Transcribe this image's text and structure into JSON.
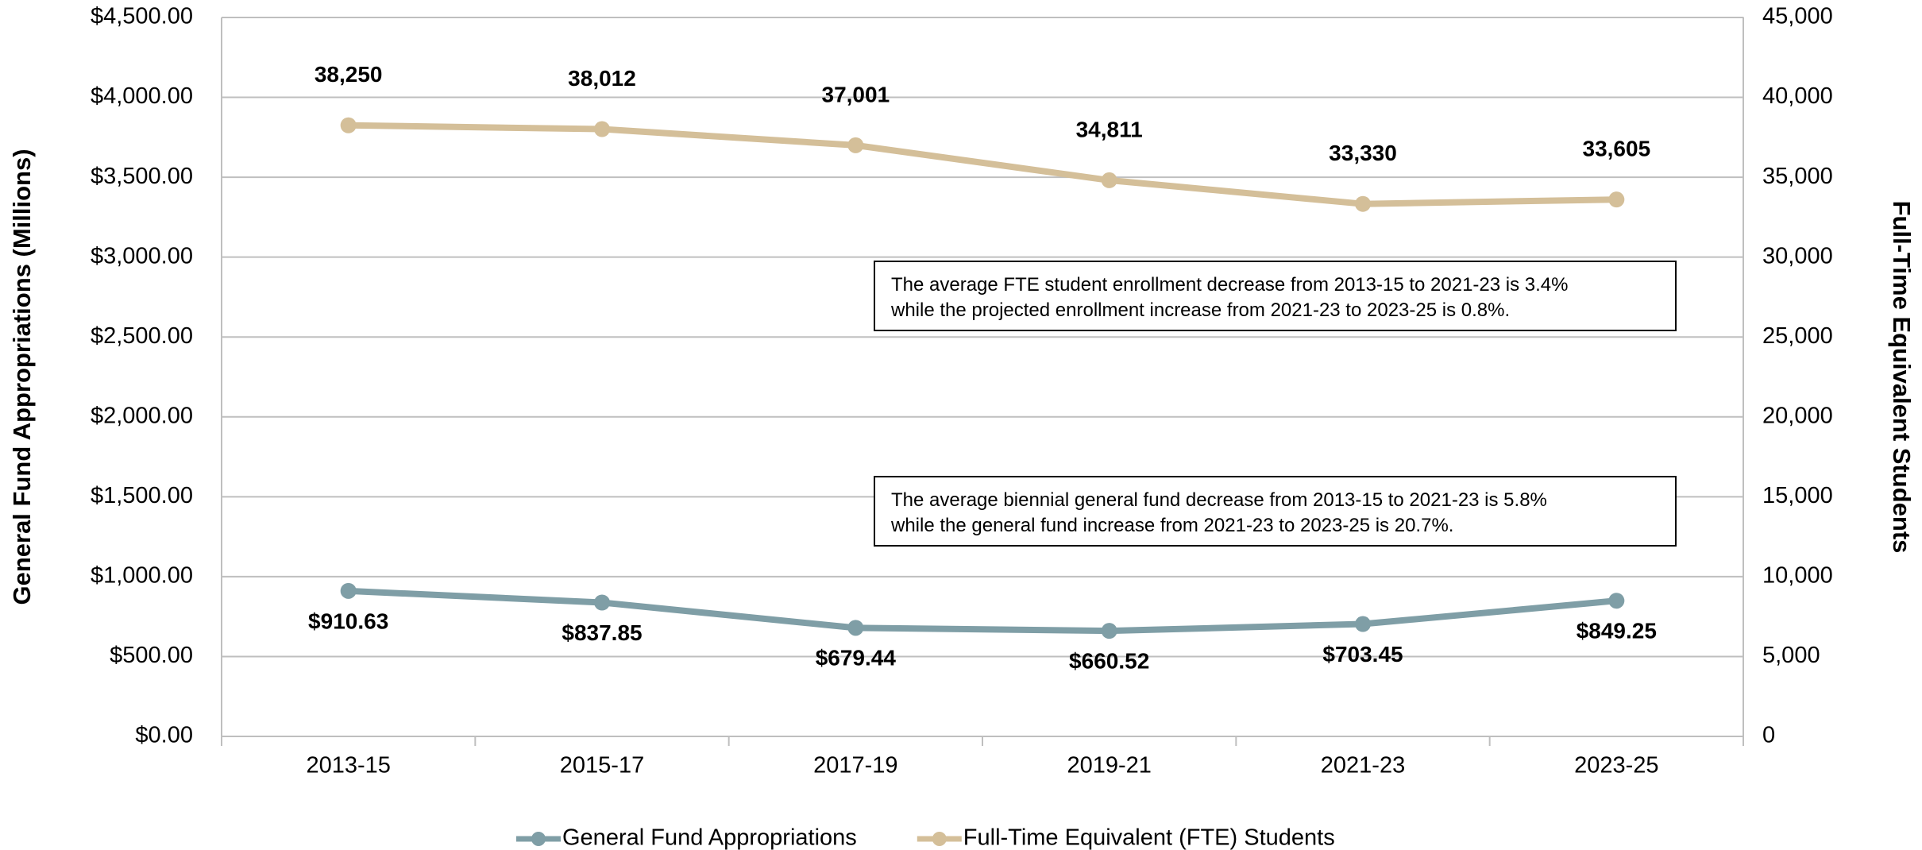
{
  "chart_data": {
    "type": "line",
    "categories": [
      "2013-15",
      "2015-17",
      "2017-19",
      "2019-21",
      "2021-23",
      "2023-25"
    ],
    "series": [
      {
        "name": "General Fund Appropriations",
        "color": "#7f9ea6",
        "label_color": "#5f7e87",
        "values": [
          910.63,
          837.85,
          679.44,
          660.52,
          703.45,
          849.25
        ],
        "value_labels": [
          "$910.63",
          "$837.85",
          "$679.44",
          "$660.52",
          "$703.45",
          "$849.25"
        ]
      },
      {
        "name": "Full-Time Equivalent (FTE) Students",
        "color": "#d4bf99",
        "label_color": "#b8955e",
        "axis": "y2",
        "values": [
          38250,
          38012,
          37001,
          34811,
          33330,
          33605
        ],
        "value_labels": [
          "38,250",
          "38,012",
          "37,001",
          "34,811",
          "33,330",
          "33,605"
        ]
      }
    ],
    "ylabel": "General Fund Appropriations (Millions)",
    "y2label": "Full-Time Equivalent Students",
    "ylim": [
      0,
      4500
    ],
    "yticks": [
      {
        "value": 0,
        "label": "$0.00"
      },
      {
        "value": 500,
        "label": "$500.00"
      },
      {
        "value": 1000,
        "label": "$1,000.00"
      },
      {
        "value": 1500,
        "label": "$1,500.00"
      },
      {
        "value": 2000,
        "label": "$2,000.00"
      },
      {
        "value": 2500,
        "label": "$2,500.00"
      },
      {
        "value": 3000,
        "label": "$3,000.00"
      },
      {
        "value": 3500,
        "label": "$3,500.00"
      },
      {
        "value": 4000,
        "label": "$4,000.00"
      },
      {
        "value": 4500,
        "label": "$4,500.00"
      }
    ],
    "y2lim": [
      0,
      45000
    ],
    "y2ticks": [
      0,
      {
        "value": 5000,
        "label": "5,000"
      },
      {
        "value": 10000,
        "label": "10,000"
      },
      {
        "value": 15000,
        "label": "15,000"
      },
      {
        "value": 20000,
        "label": "20,000"
      },
      {
        "value": 25000,
        "label": "25,000"
      },
      {
        "value": 30000,
        "label": "30,000"
      },
      {
        "value": 35000,
        "label": "35,000"
      },
      {
        "value": 40000,
        "label": "40,000"
      },
      {
        "value": 45000,
        "label": "45,000"
      }
    ],
    "grid": true,
    "legend": "bottom",
    "annotations": [
      [
        "The average FTE student enrollment decrease from 2013-15 to 2021-23 is 3.4%",
        "while the projected enrollment increase from 2021-23 to 2023-25 is 0.8%."
      ],
      [
        "The average biennial general fund decrease from 2013-15 to 2021-23 is 5.8%",
        "while the general fund increase from 2021-23 to 2023-25 is 20.7%."
      ]
    ]
  }
}
